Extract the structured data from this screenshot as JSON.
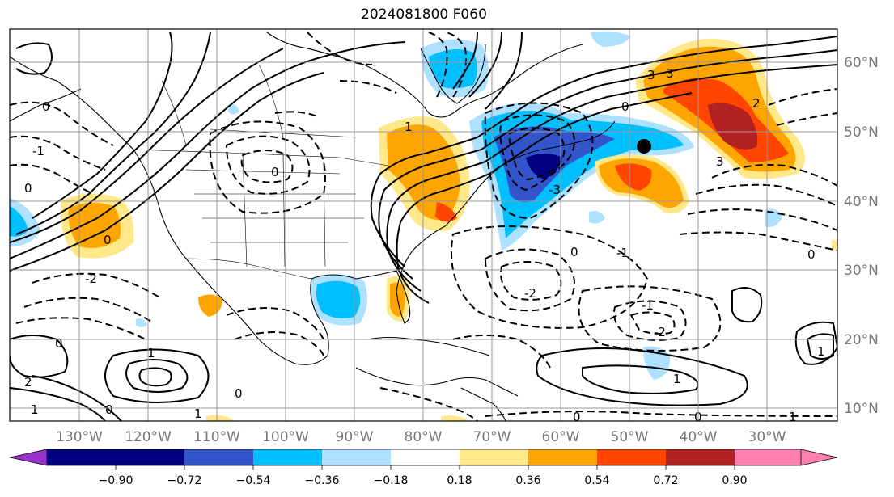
{
  "title": "2024081800 F060",
  "map": {
    "lat_labels": [
      "60°N",
      "50°N",
      "40°N",
      "30°N",
      "20°N",
      "10°N"
    ],
    "lon_labels": [
      "130°W",
      "120°W",
      "110°W",
      "100°W",
      "90°W",
      "80°W",
      "70°W",
      "60°W",
      "50°W",
      "40°W",
      "30°W"
    ],
    "contour_labels": [
      "0",
      "1",
      "2",
      "3",
      "-1",
      "-2",
      "-3"
    ],
    "colors": {
      "grid": "#999999",
      "coast": "#000000",
      "land_outline": "#000000"
    }
  },
  "colorbar": {
    "tick_labels": [
      "−0.90",
      "−0.72",
      "−0.54",
      "−0.36",
      "−0.18",
      "0.18",
      "0.36",
      "0.54",
      "0.72",
      "0.90"
    ],
    "colors": [
      "#9933cc",
      "#000080",
      "#3355cc",
      "#00bfff",
      "#aee0ff",
      "#ffffff",
      "#ffe88a",
      "#ffa500",
      "#ff4500",
      "#b22222",
      "#ff80b0"
    ]
  }
}
